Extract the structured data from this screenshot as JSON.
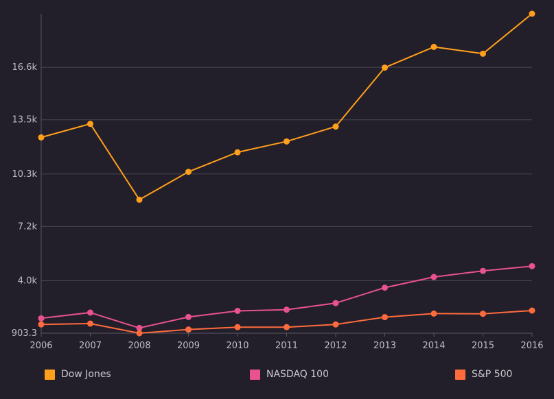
{
  "chart_data": {
    "type": "line",
    "x": [
      "2006",
      "2007",
      "2008",
      "2009",
      "2010",
      "2011",
      "2012",
      "2013",
      "2014",
      "2015",
      "2016"
    ],
    "series": [
      {
        "name": "Dow Jones",
        "color": "#ff9f1c",
        "values": [
          12460,
          13260,
          8780,
          10430,
          11580,
          12220,
          13100,
          16580,
          17800,
          17400,
          19760
        ]
      },
      {
        "name": "NASDAQ 100",
        "color": "#e8528e",
        "values": [
          1780,
          2120,
          1210,
          1860,
          2220,
          2290,
          2680,
          3590,
          4220,
          4580,
          4860
        ]
      },
      {
        "name": "S&P 500",
        "color": "#ff6b3d",
        "values": [
          1420,
          1470,
          903.3,
          1120,
          1260,
          1260,
          1420,
          1850,
          2060,
          2050,
          2240
        ]
      }
    ],
    "yticks": [
      "903.3",
      "4.0k",
      "7.2k",
      "10.3k",
      "13.5k",
      "16.6k"
    ],
    "ylim": [
      903.3,
      19760
    ],
    "grid": true,
    "legend_position": "bottom"
  }
}
